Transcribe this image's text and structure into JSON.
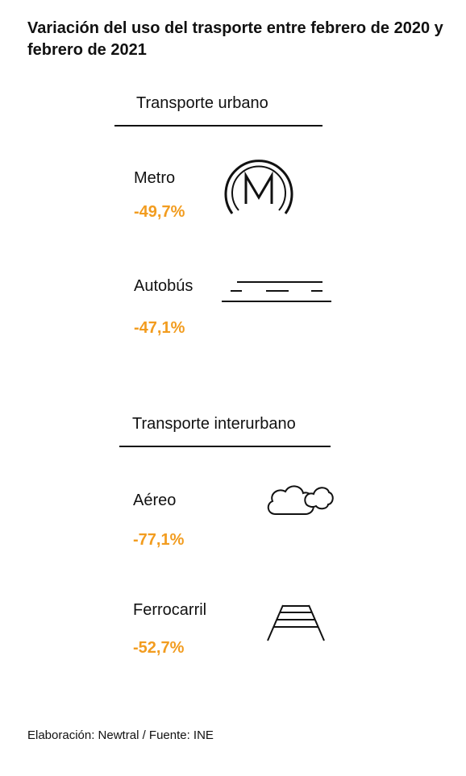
{
  "title": "Variación del uso del trasporte entre febrero de 2020 y febrero de 2021",
  "accent_color": "#f29c1f",
  "urban": {
    "heading": "Transporte urbano",
    "items": [
      {
        "label": "Metro",
        "value": "-49,7%",
        "icon": "metro-icon"
      },
      {
        "label": "Autobús",
        "value": "-47,1%",
        "icon": "road-icon"
      }
    ]
  },
  "interurban": {
    "heading": "Transporte interurbano",
    "items": [
      {
        "label": "Aéreo",
        "value": "-77,1%",
        "icon": "cloud-icon"
      },
      {
        "label": "Ferrocarril",
        "value": "-52,7%",
        "icon": "railway-track-icon"
      }
    ]
  },
  "footer": "Elaboración: Newtral  / Fuente: INE"
}
